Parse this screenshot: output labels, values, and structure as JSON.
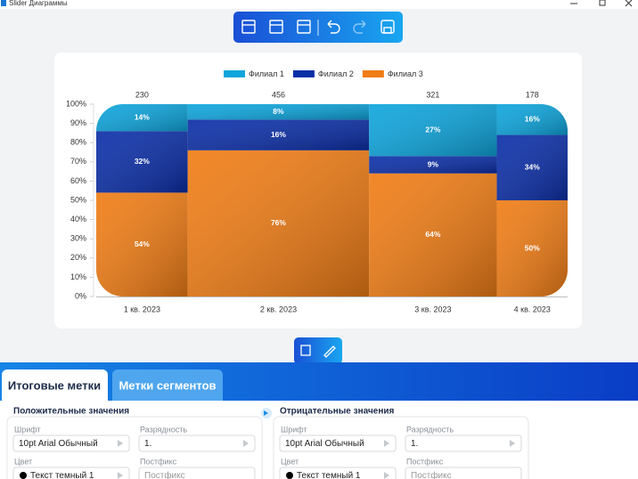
{
  "window": {
    "title": "Slider Диаграммы"
  },
  "chart_data": {
    "type": "mekko",
    "categories": [
      "1 кв. 2023",
      "2 кв. 2023",
      "3 кв. 2023",
      "4 кв. 2023"
    ],
    "totals": [
      230,
      456,
      321,
      178
    ],
    "series": [
      {
        "name": "Филиал 1",
        "color": "#0ea5dc",
        "values": [
          14,
          8,
          27,
          16
        ],
        "value_labels": [
          "14%",
          "8%",
          "27%",
          "16%"
        ]
      },
      {
        "name": "Филиал 2",
        "color": "#0c2fa8",
        "values": [
          32,
          16,
          9,
          34
        ],
        "value_labels": [
          "32%",
          "16%",
          "9%",
          "34%"
        ]
      },
      {
        "name": "Филиал 3",
        "color": "#f07d16",
        "values": [
          54,
          76,
          64,
          50
        ],
        "value_labels": [
          "54%",
          "76%",
          "64%",
          "50%"
        ]
      }
    ],
    "ylim": [
      0,
      100
    ],
    "yticks": [
      {
        "value": 0,
        "label": "0%"
      },
      {
        "value": 10,
        "label": "10%"
      },
      {
        "value": 20,
        "label": "20%"
      },
      {
        "value": 30,
        "label": "30%"
      },
      {
        "value": 40,
        "label": "40%"
      },
      {
        "value": 50,
        "label": "50%"
      },
      {
        "value": 60,
        "label": "60%"
      },
      {
        "value": 70,
        "label": "70%"
      },
      {
        "value": 80,
        "label": "80%"
      },
      {
        "value": 90,
        "label": "90%"
      },
      {
        "value": 100,
        "label": "100%"
      }
    ]
  },
  "tabs": [
    "Итоговые метки",
    "Метки сегментов"
  ],
  "panels": [
    {
      "title": "Положительные значения",
      "font_label": "Шрифт",
      "font": "10pt Arial Обычный",
      "digits_label": "Разрядность",
      "digits": "1.",
      "color_label": "Цвет",
      "color": "Текст темный 1",
      "postfix_label": "Постфикс",
      "postfix": "Постфикс"
    },
    {
      "title": "Отрицательные значения",
      "font_label": "Шрифт",
      "font": "10pt Arial Обычный",
      "digits_label": "Разрядность",
      "digits": "1.",
      "color_label": "Цвет",
      "color": "Текст темный 1",
      "postfix_label": "Постфикс",
      "postfix": "Постфикс"
    }
  ]
}
